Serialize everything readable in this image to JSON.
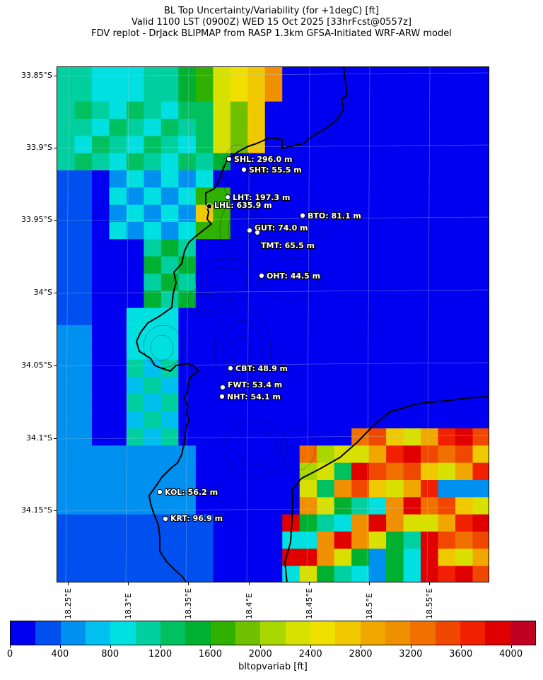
{
  "title": {
    "line1": "BL Top Uncertainty/Variability (for +1degC) [ft]",
    "line2": "Valid 1100 LST (0900Z) WED 15 Oct 2025 [33hrFcst@0557z]",
    "line3": "FDV replot - DrJack BLIPMAP from RASP 1.3km GFSA-Initiated WRF-ARW model"
  },
  "axes": {
    "y_ticks": [
      "33.85°S",
      "33.9°S",
      "33.95°S",
      "34°S",
      "34.05°S",
      "34.1°S",
      "34.15°S"
    ],
    "x_ticks": [
      "18.25°E",
      "18.3°E",
      "18.35°E",
      "18.4°E",
      "18.45°E",
      "18.5°E",
      "18.55°E"
    ]
  },
  "colorbar": {
    "label": "bltopvariab [ft]",
    "tick_labels": [
      "0",
      "400",
      "800",
      "1200",
      "1600",
      "2000",
      "2400",
      "2800",
      "3200",
      "3600",
      "4000"
    ],
    "colors": [
      "#0000f0",
      "#0050f0",
      "#0090f0",
      "#00c0f0",
      "#00e0e0",
      "#00d0a0",
      "#00c060",
      "#00b030",
      "#30b000",
      "#70c000",
      "#a8d800",
      "#d8e000",
      "#f0e000",
      "#f0c800",
      "#f0a800",
      "#f09000",
      "#f07000",
      "#f04800",
      "#f02000",
      "#e00000",
      "#c00020"
    ]
  },
  "stations": [
    {
      "id": "SHL",
      "label": "SHL: 296.0 m"
    },
    {
      "id": "SHT",
      "label": "SHT: 55.5 m"
    },
    {
      "id": "LHT",
      "label": "LHT: 197.3 m"
    },
    {
      "id": "LHL",
      "label": "LHL: 635.9 m"
    },
    {
      "id": "BTO",
      "label": "BTO: 81.1 m"
    },
    {
      "id": "GUT",
      "label": "GUT: 74.0 m"
    },
    {
      "id": "TMT",
      "label": "TMT: 65.5 m"
    },
    {
      "id": "OHT",
      "label": "OHT: 44.5 m"
    },
    {
      "id": "CBT",
      "label": "CBT: 48.9 m"
    },
    {
      "id": "FWT",
      "label": "FWT: 53.4 m"
    },
    {
      "id": "NHT",
      "label": "NHT: 54.1 m"
    },
    {
      "id": "KOL",
      "label": "KOL: 56.2 m"
    },
    {
      "id": "KRT",
      "label": "KRT: 96.9 m"
    }
  ]
}
